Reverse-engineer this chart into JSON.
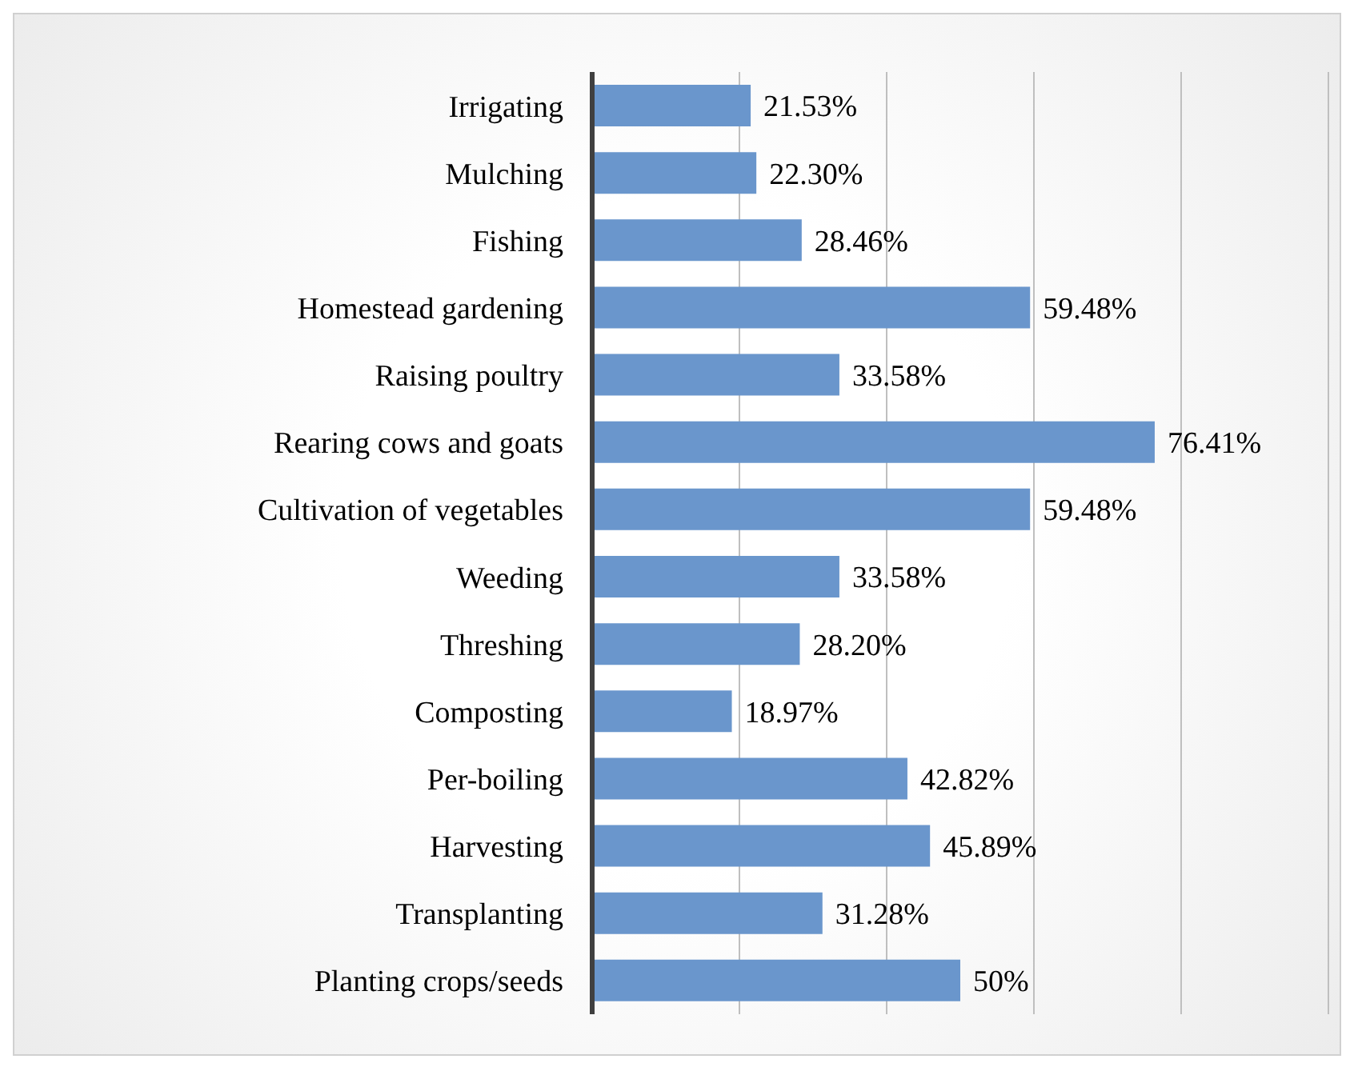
{
  "chart_data": {
    "type": "bar",
    "orientation": "horizontal",
    "categories": [
      "Irrigating",
      "Mulching",
      "Fishing",
      "Homestead gardening",
      "Raising poultry",
      "Rearing cows and goats",
      "Cultivation of vegetables",
      "Weeding",
      "Threshing",
      "Composting",
      "Per-boiling",
      "Harvesting",
      "Transplanting",
      "Planting crops/seeds"
    ],
    "values": [
      21.53,
      22.3,
      28.46,
      59.48,
      33.58,
      76.41,
      59.48,
      33.58,
      28.2,
      18.97,
      42.82,
      45.89,
      31.28,
      50
    ],
    "value_labels": [
      "21.53%",
      "22.30%",
      "28.46%",
      "59.48%",
      "33.58%",
      "76.41%",
      "59.48%",
      "33.58%",
      "28.20%",
      "18.97%",
      "42.82%",
      "45.89%",
      "31.28%",
      "50%"
    ],
    "color": "#6a96cc",
    "xlim": [
      0,
      100
    ],
    "grid": "x",
    "tick_labels": "y"
  }
}
